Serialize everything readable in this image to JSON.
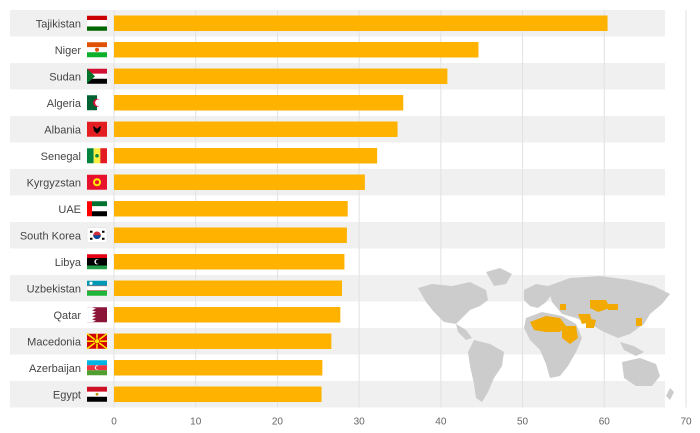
{
  "chart_data": {
    "type": "bar",
    "orientation": "horizontal",
    "title": "",
    "xlabel": "",
    "ylabel": "",
    "xlim": [
      0,
      70
    ],
    "xticks": [
      0,
      10,
      20,
      30,
      40,
      50,
      60,
      70
    ],
    "grid": true,
    "categories": [
      "Tajikistan",
      "Niger",
      "Sudan",
      "Algeria",
      "Albania",
      "Senegal",
      "Kyrgyzstan",
      "UAE",
      "South Korea",
      "Libya",
      "Uzbekistan",
      "Qatar",
      "Macedonia",
      "Azerbaijan",
      "Egypt"
    ],
    "values": [
      60.4,
      44.6,
      40.8,
      35.4,
      34.7,
      32.2,
      30.7,
      28.6,
      28.5,
      28.2,
      27.9,
      27.7,
      26.6,
      25.5,
      25.4
    ],
    "flag_icons": [
      "flag-tajikistan-icon",
      "flag-niger-icon",
      "flag-sudan-icon",
      "flag-algeria-icon",
      "flag-albania-icon",
      "flag-senegal-icon",
      "flag-kyrgyzstan-icon",
      "flag-uae-icon",
      "flag-south-korea-icon",
      "flag-libya-icon",
      "flag-uzbekistan-icon",
      "flag-qatar-icon",
      "flag-macedonia-icon",
      "flag-azerbaijan-icon",
      "flag-egypt-icon"
    ],
    "legend": "none"
  },
  "colors": {
    "bar": "#FFB300",
    "row_band": "#F0F0F0",
    "grid": "#E2E2E2",
    "map_land": "#CCCCCC",
    "map_highlight": "#F2A900"
  },
  "map_icon": "world-map-icon"
}
